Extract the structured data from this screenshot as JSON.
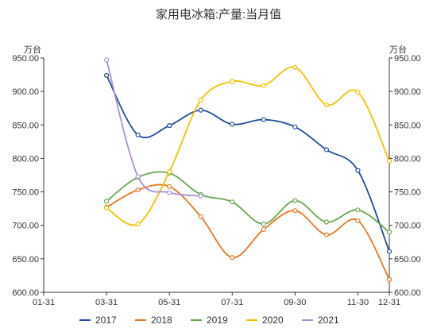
{
  "chart_data": {
    "type": "line",
    "title": "家用电冰箱:产量:当月值",
    "unit_left": "万台",
    "unit_right": "万台",
    "xlabel": "",
    "ylabel": "",
    "ylim": [
      600,
      950
    ],
    "yticks": [
      600,
      650,
      700,
      750,
      800,
      850,
      900,
      950
    ],
    "ytick_labels": [
      "600.00",
      "650.00",
      "700.00",
      "750.00",
      "800.00",
      "850.00",
      "900.00",
      "950.00"
    ],
    "xlim_months": [
      1,
      12
    ],
    "xticks": [
      "01-31",
      "03-31",
      "05-31",
      "07-31",
      "09-30",
      "11-30",
      "12-31"
    ],
    "grid": false,
    "legend_position": "bottom",
    "series": [
      {
        "name": "2017",
        "color": "#1f4e9c",
        "x": [
          3,
          4,
          5,
          6,
          7,
          8,
          9,
          10,
          11,
          12
        ],
        "values": [
          924,
          835,
          849,
          872,
          851,
          858,
          847,
          813,
          782,
          661
        ]
      },
      {
        "name": "2018",
        "color": "#e87722",
        "x": [
          3,
          4,
          5,
          6,
          7,
          8,
          9,
          10,
          11,
          12
        ],
        "values": [
          727,
          753,
          758,
          713,
          652,
          694,
          722,
          686,
          707,
          619
        ]
      },
      {
        "name": "2019",
        "color": "#6aa84f",
        "x": [
          3,
          4,
          5,
          6,
          7,
          8,
          9,
          10,
          11,
          12
        ],
        "values": [
          736,
          772,
          778,
          746,
          735,
          702,
          737,
          705,
          723,
          690
        ]
      },
      {
        "name": "2020",
        "color": "#f2c200",
        "x": [
          3,
          4,
          5,
          6,
          7,
          8,
          9,
          10,
          11,
          12
        ],
        "values": [
          726,
          702,
          780,
          887,
          915,
          909,
          936,
          880,
          899,
          796
        ]
      },
      {
        "name": "2021",
        "color": "#a993d6",
        "x": [
          3,
          4,
          5,
          6
        ],
        "values": [
          947,
          773,
          749,
          744
        ]
      }
    ]
  }
}
